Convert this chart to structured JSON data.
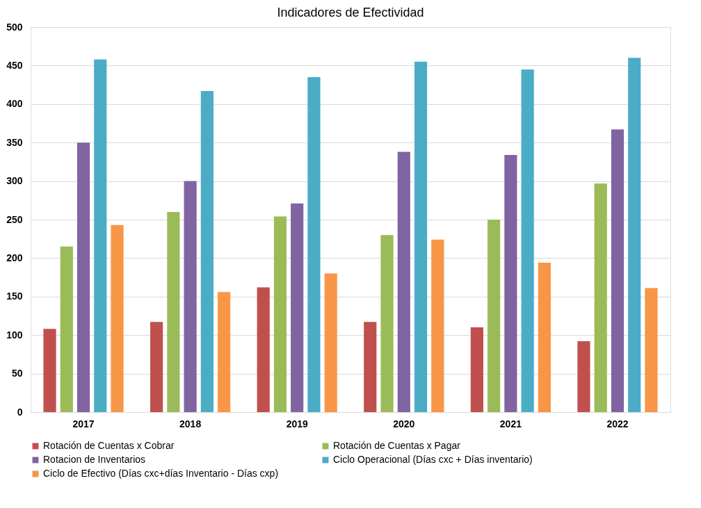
{
  "chart_data": {
    "type": "bar",
    "title": "Indicadores de Efectividad",
    "categories": [
      "2017",
      "2018",
      "2019",
      "2020",
      "2021",
      "2022"
    ],
    "series": [
      {
        "name": "Rotación de Cuentas x Cobrar",
        "color": "#c0504d",
        "values": [
          108,
          117,
          162,
          117,
          110,
          92
        ]
      },
      {
        "name": "Rotación de Cuentas x Pagar",
        "color": "#9bbb59",
        "values": [
          215,
          260,
          254,
          230,
          250,
          297
        ]
      },
      {
        "name": "Rotacion de Inventarios",
        "color": "#8064a2",
        "values": [
          350,
          300,
          271,
          338,
          334,
          367
        ]
      },
      {
        "name": "Ciclo Operacional (Días cxc + Días inventario)",
        "color": "#4bacc6",
        "values": [
          458,
          417,
          435,
          455,
          445,
          460
        ]
      },
      {
        "name": "Ciclo de Efectivo (Días cxc+días Inventario - Días cxp)",
        "color": "#f79646",
        "values": [
          243,
          156,
          180,
          224,
          194,
          161
        ]
      }
    ],
    "ylim": [
      0,
      500
    ],
    "yticks": [
      0,
      50,
      100,
      150,
      200,
      250,
      300,
      350,
      400,
      450,
      500
    ],
    "grid": "y",
    "legend": "bottom"
  }
}
